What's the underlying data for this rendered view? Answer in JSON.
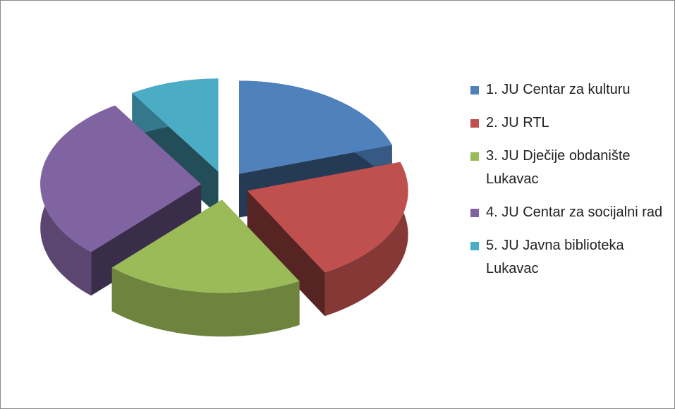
{
  "chart_data": {
    "type": "pie",
    "categories": [
      "1. JU Centar za kulturu",
      "2. JU RTL",
      "3. JU Dječije obdanište Lukavac",
      "4. JU Centar za socijalni rad",
      "5. JU Javna biblioteka Lukavac"
    ],
    "values": [
      20,
      22,
      20,
      29,
      9
    ],
    "colors": [
      "#4f81bd",
      "#c0504d",
      "#9bbb59",
      "#8064a2",
      "#4bacc6"
    ],
    "legend": "right"
  }
}
